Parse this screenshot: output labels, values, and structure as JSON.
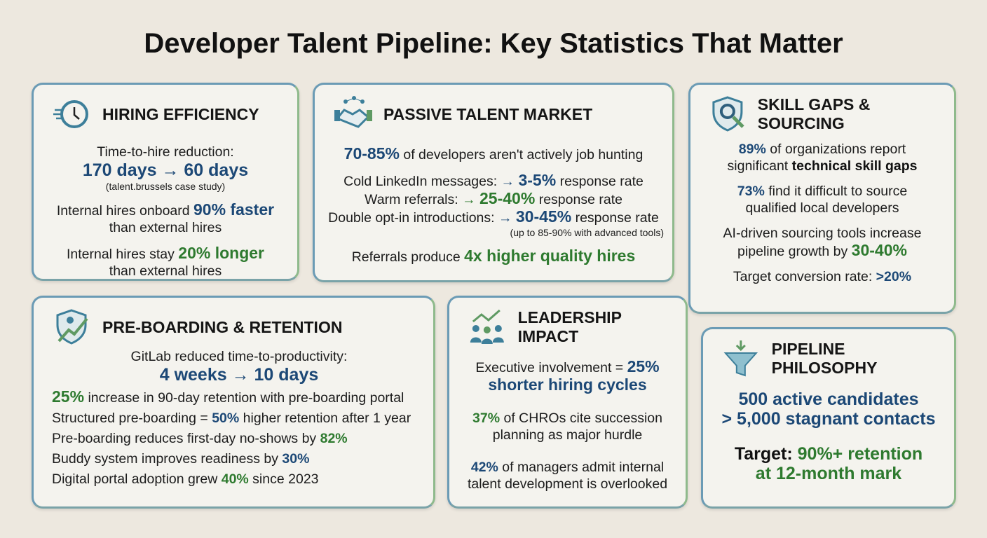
{
  "title": {
    "bold": "Developer Talent Pipeline:",
    "rest": " Key Statistics That Matter"
  },
  "colors": {
    "blue": "#1c4876",
    "green": "#2e7a2f",
    "background": "#ede8df",
    "card": "#f4f3ee"
  },
  "cards": [
    {
      "title": "HIRING EFFICIENCY",
      "icon": "clock-rewind-icon",
      "lines": [
        {
          "size": "",
          "segs": [
            {
              "t": "Time-to-hire reduction:",
              "s": ""
            }
          ]
        },
        {
          "size": "lg",
          "segs": [
            {
              "t": "170 days → 60 days",
              "s": "b"
            }
          ]
        },
        {
          "size": "sm",
          "segs": [
            {
              "t": "(talent.brussels case study)",
              "s": ""
            }
          ]
        },
        {
          "size": "gap",
          "segs": [
            {
              "t": "Internal hires onboard ",
              "s": ""
            },
            {
              "t": "90% faster",
              "s": "b big"
            }
          ]
        },
        {
          "size": "",
          "segs": [
            {
              "t": "than external hires",
              "s": ""
            }
          ]
        },
        {
          "size": "gap",
          "segs": [
            {
              "t": "Internal hires stay ",
              "s": ""
            },
            {
              "t": "20% longer",
              "s": "g big"
            }
          ]
        },
        {
          "size": "",
          "segs": [
            {
              "t": "than external hires",
              "s": ""
            }
          ]
        }
      ]
    },
    {
      "title": "PASSIVE TALENT MARKET",
      "icon": "handshake-network-icon",
      "lines": [
        {
          "size": "",
          "segs": [
            {
              "t": "70-85%",
              "s": "b big"
            },
            {
              "t": " of developers aren't actively job hunting",
              "s": ""
            }
          ]
        },
        {
          "size": "gap",
          "segs": [
            {
              "t": "Cold LinkedIn messages: ",
              "s": ""
            },
            {
              "t": "→ ",
              "s": "b"
            },
            {
              "t": "3-5%",
              "s": "b big"
            },
            {
              "t": " response rate",
              "s": ""
            }
          ]
        },
        {
          "size": "",
          "segs": [
            {
              "t": "Warm referrals: ",
              "s": ""
            },
            {
              "t": "→ ",
              "s": "g"
            },
            {
              "t": "25-40%",
              "s": "g big"
            },
            {
              "t": " response rate",
              "s": ""
            }
          ]
        },
        {
          "size": "",
          "segs": [
            {
              "t": "Double opt-in introductions: ",
              "s": ""
            },
            {
              "t": "→ ",
              "s": "b"
            },
            {
              "t": "30-45%",
              "s": "b big"
            },
            {
              "t": " response rate",
              "s": ""
            }
          ]
        },
        {
          "size": "sm",
          "segs": [
            {
              "t": "(up to 85-90% with advanced tools)",
              "s": ""
            }
          ]
        },
        {
          "size": "gap",
          "segs": [
            {
              "t": "Referrals produce ",
              "s": ""
            },
            {
              "t": "4x higher quality hires",
              "s": "g big"
            }
          ]
        }
      ]
    },
    {
      "title": "SKILL GAPS & SOURCING",
      "icon": "shield-gear-search-icon",
      "lines": [
        {
          "size": "",
          "segs": [
            {
              "t": "89%",
              "s": "b"
            },
            {
              "t": " of organizations report",
              "s": ""
            }
          ]
        },
        {
          "size": "",
          "segs": [
            {
              "t": "significant ",
              "s": ""
            },
            {
              "t": "technical skill gaps",
              "s": "k"
            }
          ]
        },
        {
          "size": "gap",
          "segs": [
            {
              "t": "73%",
              "s": "b"
            },
            {
              "t": " find it difficult to source",
              "s": ""
            }
          ]
        },
        {
          "size": "",
          "segs": [
            {
              "t": "qualified local developers",
              "s": ""
            }
          ]
        },
        {
          "size": "gap",
          "segs": [
            {
              "t": "AI-driven sourcing tools increase",
              "s": ""
            }
          ]
        },
        {
          "size": "",
          "segs": [
            {
              "t": "pipeline growth by ",
              "s": ""
            },
            {
              "t": "30-40%",
              "s": "g big"
            }
          ]
        },
        {
          "size": "gap",
          "segs": [
            {
              "t": "Target conversion rate: ",
              "s": ""
            },
            {
              "t": ">20%",
              "s": "b"
            }
          ]
        }
      ]
    },
    {
      "title": "PRE-BOARDING & RETENTION",
      "icon": "shield-growth-icon",
      "lines": [
        {
          "size": "center",
          "segs": [
            {
              "t": "GitLab reduced time-to-productivity:",
              "s": ""
            }
          ]
        },
        {
          "size": "center lg",
          "segs": [
            {
              "t": "4 weeks → 10 days",
              "s": "b"
            }
          ]
        },
        {
          "size": "",
          "segs": [
            {
              "t": "25%",
              "s": "g big"
            },
            {
              "t": " increase in 90-day retention with pre-boarding portal",
              "s": ""
            }
          ]
        },
        {
          "size": "",
          "segs": [
            {
              "t": "Structured pre-boarding = ",
              "s": ""
            },
            {
              "t": "50%",
              "s": "b"
            },
            {
              "t": " higher retention after 1 year",
              "s": ""
            }
          ]
        },
        {
          "size": "",
          "segs": [
            {
              "t": "Pre-boarding reduces first-day no-shows by ",
              "s": ""
            },
            {
              "t": "82%",
              "s": "g"
            }
          ]
        },
        {
          "size": "",
          "segs": [
            {
              "t": "Buddy system improves readiness by ",
              "s": ""
            },
            {
              "t": "30%",
              "s": "b"
            }
          ]
        },
        {
          "size": "",
          "segs": [
            {
              "t": "Digital portal adoption grew ",
              "s": ""
            },
            {
              "t": "40%",
              "s": "g"
            },
            {
              "t": " since 2023",
              "s": ""
            }
          ]
        }
      ]
    },
    {
      "title": "LEADERSHIP IMPACT",
      "icon": "team-growth-icon",
      "lines": [
        {
          "size": "",
          "segs": [
            {
              "t": "Executive involvement = ",
              "s": ""
            },
            {
              "t": "25%",
              "s": "b big"
            }
          ]
        },
        {
          "size": "",
          "segs": [
            {
              "t": "shorter hiring cycles",
              "s": "b big"
            }
          ]
        },
        {
          "size": "gap2",
          "segs": [
            {
              "t": "37%",
              "s": "g"
            },
            {
              "t": " of CHROs cite succession",
              "s": ""
            }
          ]
        },
        {
          "size": "",
          "segs": [
            {
              "t": "planning as major hurdle",
              "s": ""
            }
          ]
        },
        {
          "size": "gap2",
          "segs": [
            {
              "t": "42%",
              "s": "b"
            },
            {
              "t": " of managers admit internal",
              "s": ""
            }
          ]
        },
        {
          "size": "",
          "segs": [
            {
              "t": "talent development is overlooked",
              "s": ""
            }
          ]
        }
      ]
    },
    {
      "title": "PIPELINE PHILOSOPHY",
      "icon": "funnel-icon",
      "lines": [
        {
          "size": "lg",
          "segs": [
            {
              "t": "500 active candidates",
              "s": "b"
            }
          ]
        },
        {
          "size": "lg",
          "segs": [
            {
              "t": "> 5,000 stagnant contacts",
              "s": "b"
            }
          ]
        },
        {
          "size": "lg gap2",
          "segs": [
            {
              "t": "Target: ",
              "s": "k"
            },
            {
              "t": "90%+ retention",
              "s": "g"
            }
          ]
        },
        {
          "size": "lg",
          "segs": [
            {
              "t": "at 12-month mark",
              "s": "g"
            }
          ]
        }
      ]
    }
  ]
}
